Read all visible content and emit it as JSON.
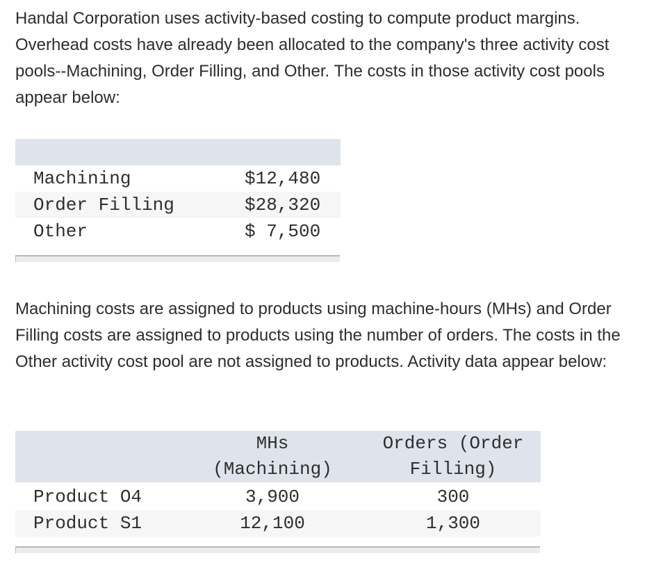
{
  "intro": "Handal Corporation uses activity-based costing to compute product margins. Overhead costs have already been allocated to the company's three activity cost pools--Machining, Order Filling, and Other. The costs in those activity cost pools appear below:",
  "cost_pools": [
    {
      "label": "Machining",
      "value": "$12,480"
    },
    {
      "label": "Order Filling",
      "value": "$28,320"
    },
    {
      "label": "Other",
      "value": "$ 7,500"
    }
  ],
  "middle": "Machining costs are assigned to products using machine-hours (MHs) and Order Filling costs are assigned to products using the number of orders. The costs in the Other activity cost pool are not assigned to products. Activity data appear below:",
  "activity_table": {
    "headers": {
      "mhs_line1": "MHs",
      "mhs_line2": "(Machining)",
      "orders_line1": "Orders (Order",
      "orders_line2": "Filling)"
    },
    "rows": [
      {
        "label": "Product O4",
        "mhs": "3,900",
        "orders": "300"
      },
      {
        "label": "Product S1",
        "mhs": "12,100",
        "orders": "1,300"
      }
    ]
  }
}
